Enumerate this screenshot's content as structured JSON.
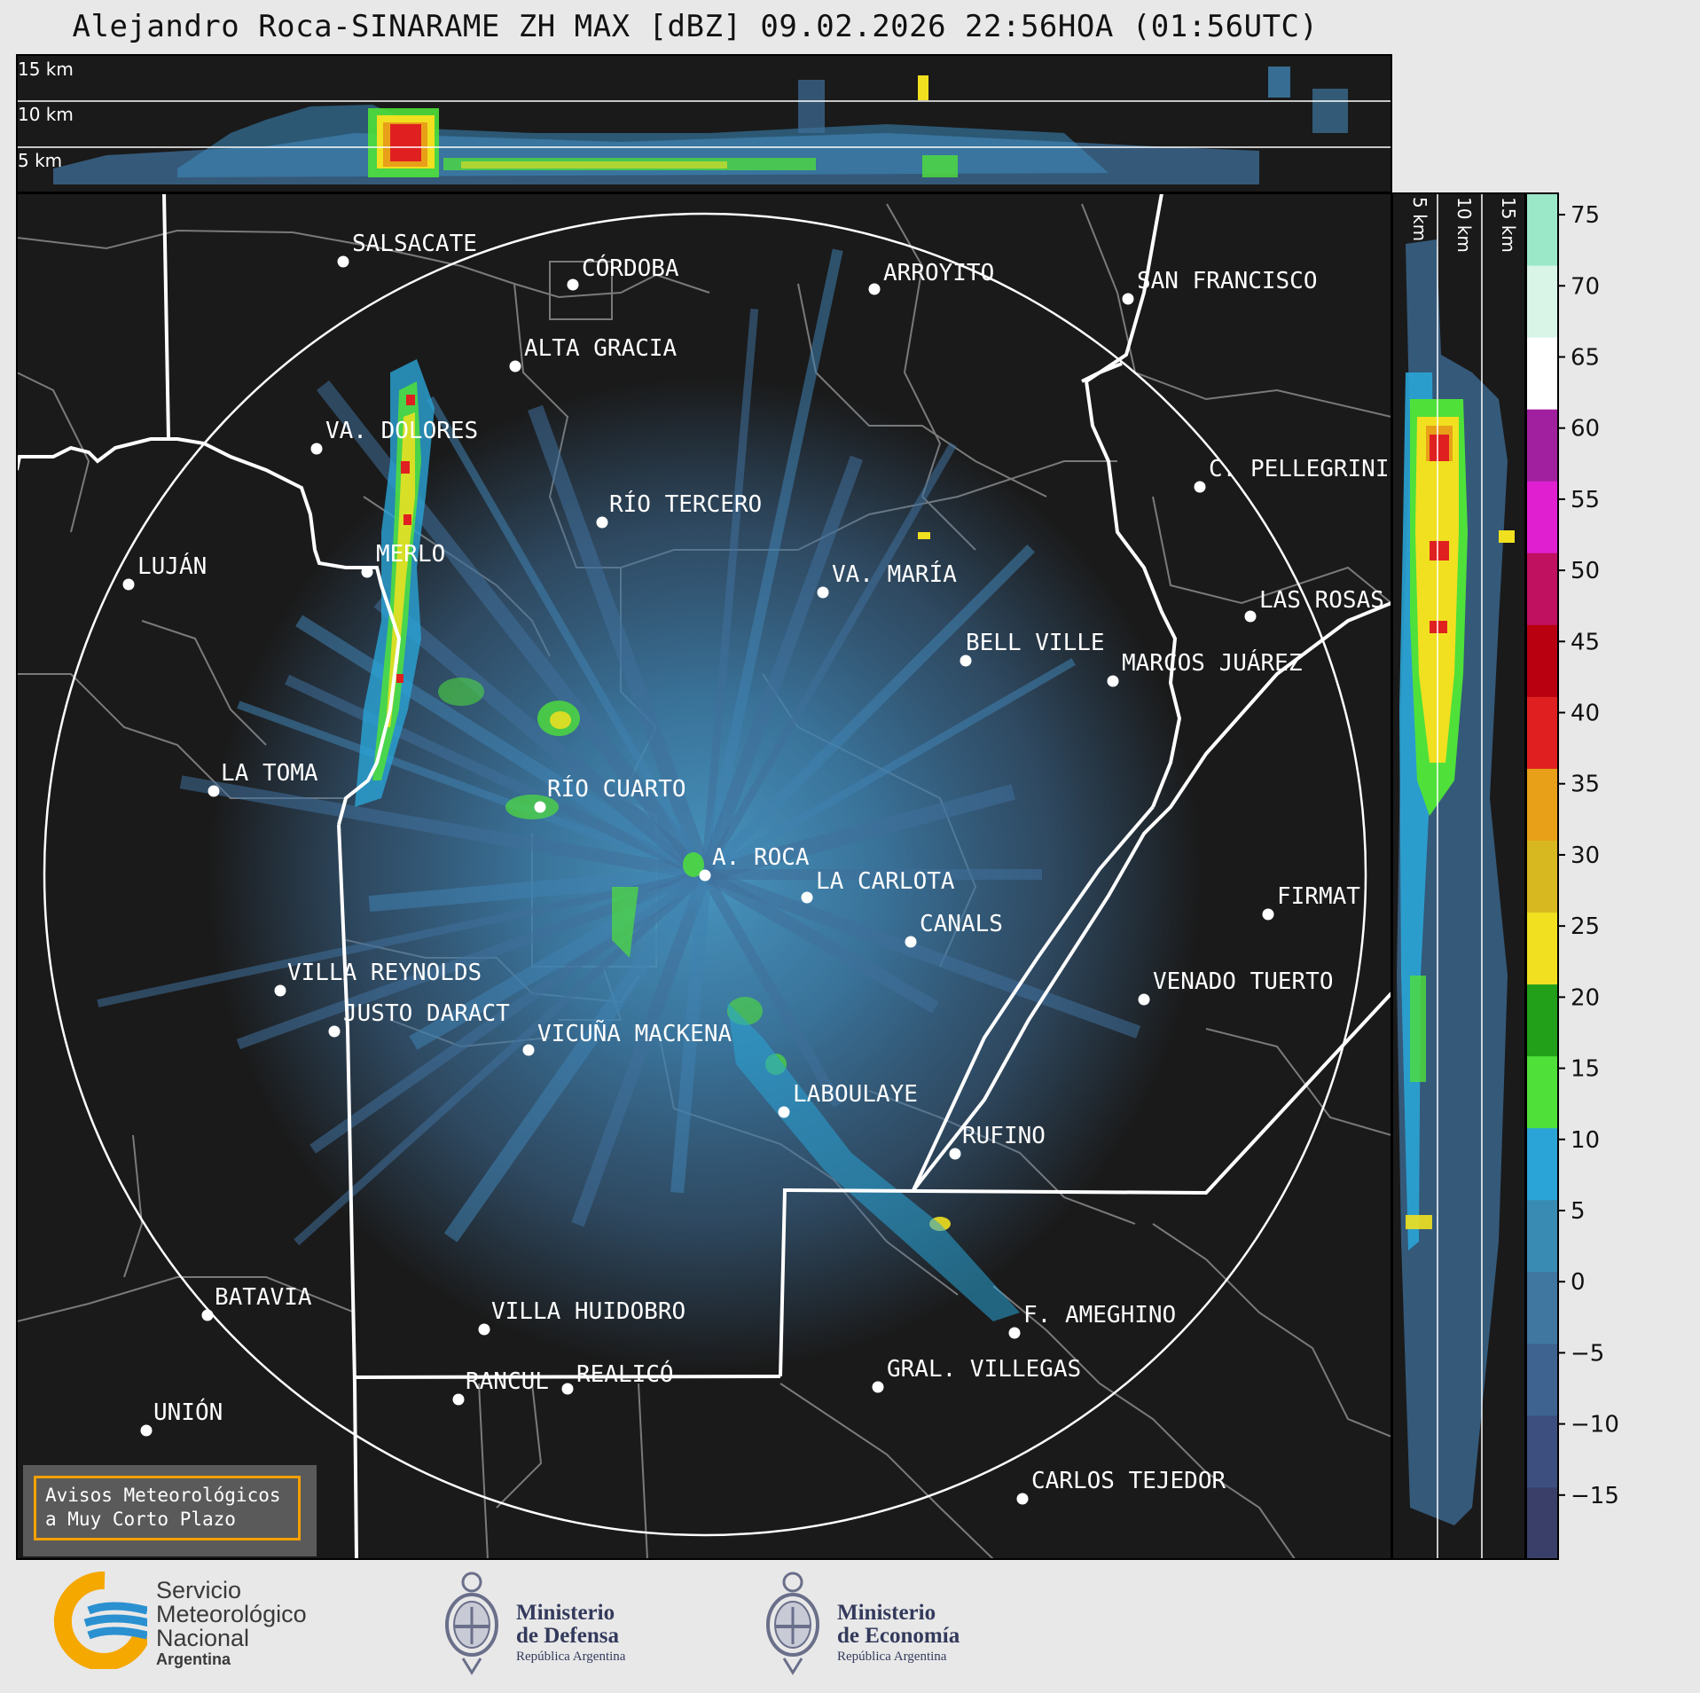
{
  "title": "Alejandro Roca-SINARAME ZH MAX [dBZ] 09.02.2026 22:56HOA (01:56UTC)",
  "top_panel": {
    "levels": [
      "15 km",
      "10 km",
      "5 km"
    ]
  },
  "side_panel": {
    "levels": [
      "5 km",
      "10 km",
      "15 km"
    ]
  },
  "colorbar": {
    "ticks": [
      "75",
      "70",
      "65",
      "60",
      "55",
      "50",
      "45",
      "40",
      "35",
      "30",
      "25",
      "20",
      "15",
      "10",
      "5",
      "0",
      "−5",
      "−10",
      "−15"
    ],
    "tick_values": [
      75,
      70,
      65,
      60,
      55,
      50,
      45,
      40,
      35,
      30,
      25,
      20,
      15,
      10,
      5,
      0,
      -5,
      -10,
      -15
    ],
    "range": [
      -19.5,
      76.5
    ],
    "unit": "dBZ",
    "scale_colors": [
      "#3a3f6a",
      "#3d4f7e",
      "#3f6390",
      "#3f77a0",
      "#3a8bb4",
      "#2aa4d6",
      "#4fe03a",
      "#22a01a",
      "#f0e020",
      "#d8b820",
      "#e8a018",
      "#e02020",
      "#b80010",
      "#c01060",
      "#e020d0",
      "#a020a0",
      "#ffffff",
      "#d8f5e8",
      "#9ae8c8"
    ]
  },
  "cities": [
    {
      "name": "SALSACATE"
    },
    {
      "name": "CÓRDOBA"
    },
    {
      "name": "ARROYITO"
    },
    {
      "name": "SAN FRANCISCO"
    },
    {
      "name": "ALTA GRACIA"
    },
    {
      "name": "VA. DOLORES"
    },
    {
      "name": "C. PELLEGRINI"
    },
    {
      "name": "RÍO TERCERO"
    },
    {
      "name": "LUJÁN"
    },
    {
      "name": "MERLO"
    },
    {
      "name": "VA. MARÍA"
    },
    {
      "name": "LAS ROSAS"
    },
    {
      "name": "BELL VILLE"
    },
    {
      "name": "MARCOS JUÁREZ"
    },
    {
      "name": "LA TOMA"
    },
    {
      "name": "RÍO CUARTO"
    },
    {
      "name": "A. ROCA"
    },
    {
      "name": "LA CARLOTA"
    },
    {
      "name": "FIRMAT"
    },
    {
      "name": "CANALS"
    },
    {
      "name": "VILLA REYNOLDS"
    },
    {
      "name": "VENADO TUERTO"
    },
    {
      "name": "JUSTO DARACT"
    },
    {
      "name": "VICUÑA MACKENA"
    },
    {
      "name": "LABOULAYE"
    },
    {
      "name": "RUFINO"
    },
    {
      "name": "BATAVIA"
    },
    {
      "name": "VILLA HUIDOBRO"
    },
    {
      "name": "F. AMEGHINO"
    },
    {
      "name": "RANCUL"
    },
    {
      "name": "REALICÓ"
    },
    {
      "name": "GRAL. VILLEGAS"
    },
    {
      "name": "UNIÓN"
    },
    {
      "name": "CARLOS TEJEDOR"
    }
  ],
  "notice": {
    "line1": "Avisos Meteorológicos",
    "line2": "a Muy Corto Plazo"
  },
  "logos": {
    "smn": {
      "line1": "Servicio",
      "line2": "Meteorológico",
      "line3": "Nacional",
      "line4": "Argentina"
    },
    "defensa": {
      "line1": "Ministerio",
      "line2": "de Defensa",
      "line3": "República Argentina"
    },
    "economia": {
      "line1": "Ministerio",
      "line2": "de Economía",
      "line3": "República Argentina"
    }
  }
}
